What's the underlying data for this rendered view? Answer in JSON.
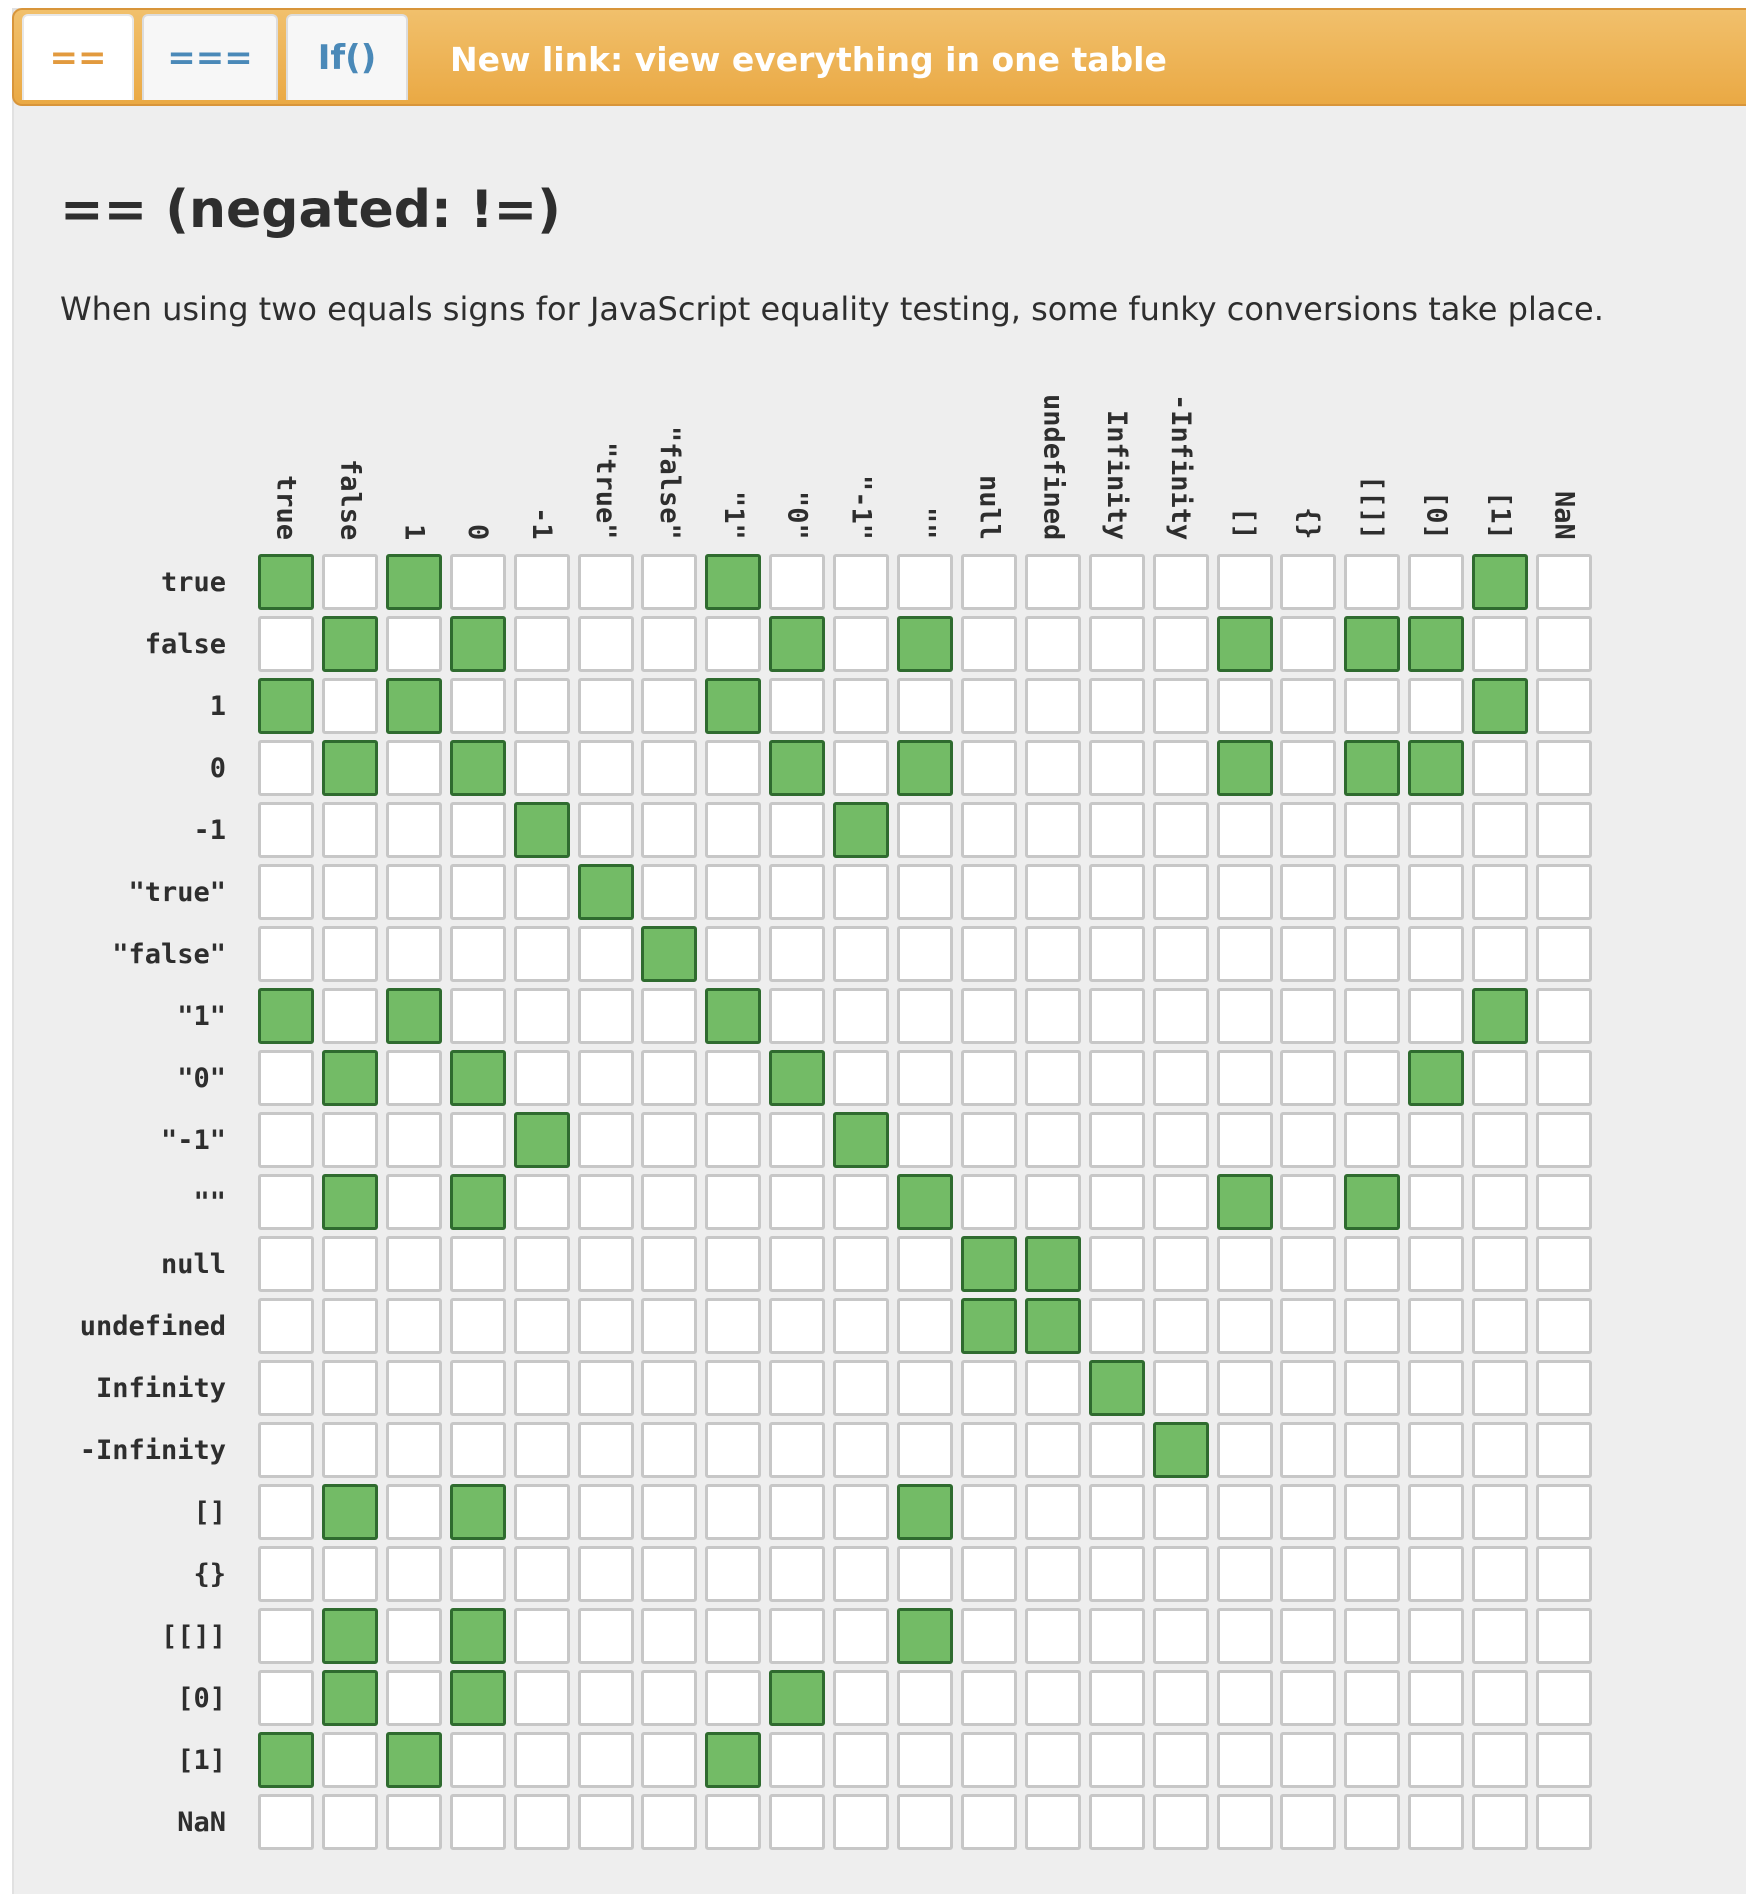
{
  "tabs": [
    {
      "label": "==",
      "active": true
    },
    {
      "label": "===",
      "active": false
    },
    {
      "label": "If()",
      "active": false
    }
  ],
  "banner_link": "New link: view everything in one table",
  "heading": "== (negated: !=)",
  "description": "When using two equals signs for JavaScript equality testing, some funky conversions take place.",
  "colors": {
    "equal": "#73bb66",
    "equal_border": "#2f6b2f",
    "not_equal": "#ffffff",
    "accent": "#eaa944"
  },
  "chart_data": {
    "type": "heatmap",
    "title": "== (negated: !=)",
    "columns": [
      "true",
      "false",
      "1",
      "0",
      "-1",
      "\"true\"",
      "\"false\"",
      "\"1\"",
      "\"0\"",
      "\"-1\"",
      "\"\"",
      "null",
      "undefined",
      "Infinity",
      "-Infinity",
      "[]",
      "{}",
      "[[]]",
      "[0]",
      "[1]",
      "NaN"
    ],
    "rows": [
      "true",
      "false",
      "1",
      "0",
      "-1",
      "\"true\"",
      "\"false\"",
      "\"1\"",
      "\"0\"",
      "\"-1\"",
      "\"\"",
      "null",
      "undefined",
      "Infinity",
      "-Infinity",
      "[]",
      "{}",
      "[[]]",
      "[0]",
      "[1]",
      "NaN"
    ],
    "values": [
      [
        1,
        0,
        1,
        0,
        0,
        0,
        0,
        1,
        0,
        0,
        0,
        0,
        0,
        0,
        0,
        0,
        0,
        0,
        0,
        1,
        0
      ],
      [
        0,
        1,
        0,
        1,
        0,
        0,
        0,
        0,
        1,
        0,
        1,
        0,
        0,
        0,
        0,
        1,
        0,
        1,
        1,
        0,
        0
      ],
      [
        1,
        0,
        1,
        0,
        0,
        0,
        0,
        1,
        0,
        0,
        0,
        0,
        0,
        0,
        0,
        0,
        0,
        0,
        0,
        1,
        0
      ],
      [
        0,
        1,
        0,
        1,
        0,
        0,
        0,
        0,
        1,
        0,
        1,
        0,
        0,
        0,
        0,
        1,
        0,
        1,
        1,
        0,
        0
      ],
      [
        0,
        0,
        0,
        0,
        1,
        0,
        0,
        0,
        0,
        1,
        0,
        0,
        0,
        0,
        0,
        0,
        0,
        0,
        0,
        0,
        0
      ],
      [
        0,
        0,
        0,
        0,
        0,
        1,
        0,
        0,
        0,
        0,
        0,
        0,
        0,
        0,
        0,
        0,
        0,
        0,
        0,
        0,
        0
      ],
      [
        0,
        0,
        0,
        0,
        0,
        0,
        1,
        0,
        0,
        0,
        0,
        0,
        0,
        0,
        0,
        0,
        0,
        0,
        0,
        0,
        0
      ],
      [
        1,
        0,
        1,
        0,
        0,
        0,
        0,
        1,
        0,
        0,
        0,
        0,
        0,
        0,
        0,
        0,
        0,
        0,
        0,
        1,
        0
      ],
      [
        0,
        1,
        0,
        1,
        0,
        0,
        0,
        0,
        1,
        0,
        0,
        0,
        0,
        0,
        0,
        0,
        0,
        0,
        1,
        0,
        0
      ],
      [
        0,
        0,
        0,
        0,
        1,
        0,
        0,
        0,
        0,
        1,
        0,
        0,
        0,
        0,
        0,
        0,
        0,
        0,
        0,
        0,
        0
      ],
      [
        0,
        1,
        0,
        1,
        0,
        0,
        0,
        0,
        0,
        0,
        1,
        0,
        0,
        0,
        0,
        1,
        0,
        1,
        0,
        0,
        0
      ],
      [
        0,
        0,
        0,
        0,
        0,
        0,
        0,
        0,
        0,
        0,
        0,
        1,
        1,
        0,
        0,
        0,
        0,
        0,
        0,
        0,
        0
      ],
      [
        0,
        0,
        0,
        0,
        0,
        0,
        0,
        0,
        0,
        0,
        0,
        1,
        1,
        0,
        0,
        0,
        0,
        0,
        0,
        0,
        0
      ],
      [
        0,
        0,
        0,
        0,
        0,
        0,
        0,
        0,
        0,
        0,
        0,
        0,
        0,
        1,
        0,
        0,
        0,
        0,
        0,
        0,
        0
      ],
      [
        0,
        0,
        0,
        0,
        0,
        0,
        0,
        0,
        0,
        0,
        0,
        0,
        0,
        0,
        1,
        0,
        0,
        0,
        0,
        0,
        0
      ],
      [
        0,
        1,
        0,
        1,
        0,
        0,
        0,
        0,
        0,
        0,
        1,
        0,
        0,
        0,
        0,
        0,
        0,
        0,
        0,
        0,
        0
      ],
      [
        0,
        0,
        0,
        0,
        0,
        0,
        0,
        0,
        0,
        0,
        0,
        0,
        0,
        0,
        0,
        0,
        0,
        0,
        0,
        0,
        0
      ],
      [
        0,
        1,
        0,
        1,
        0,
        0,
        0,
        0,
        0,
        0,
        1,
        0,
        0,
        0,
        0,
        0,
        0,
        0,
        0,
        0,
        0
      ],
      [
        0,
        1,
        0,
        1,
        0,
        0,
        0,
        0,
        1,
        0,
        0,
        0,
        0,
        0,
        0,
        0,
        0,
        0,
        0,
        0,
        0
      ],
      [
        1,
        0,
        1,
        0,
        0,
        0,
        0,
        1,
        0,
        0,
        0,
        0,
        0,
        0,
        0,
        0,
        0,
        0,
        0,
        0,
        0
      ],
      [
        0,
        0,
        0,
        0,
        0,
        0,
        0,
        0,
        0,
        0,
        0,
        0,
        0,
        0,
        0,
        0,
        0,
        0,
        0,
        0,
        0
      ]
    ]
  }
}
